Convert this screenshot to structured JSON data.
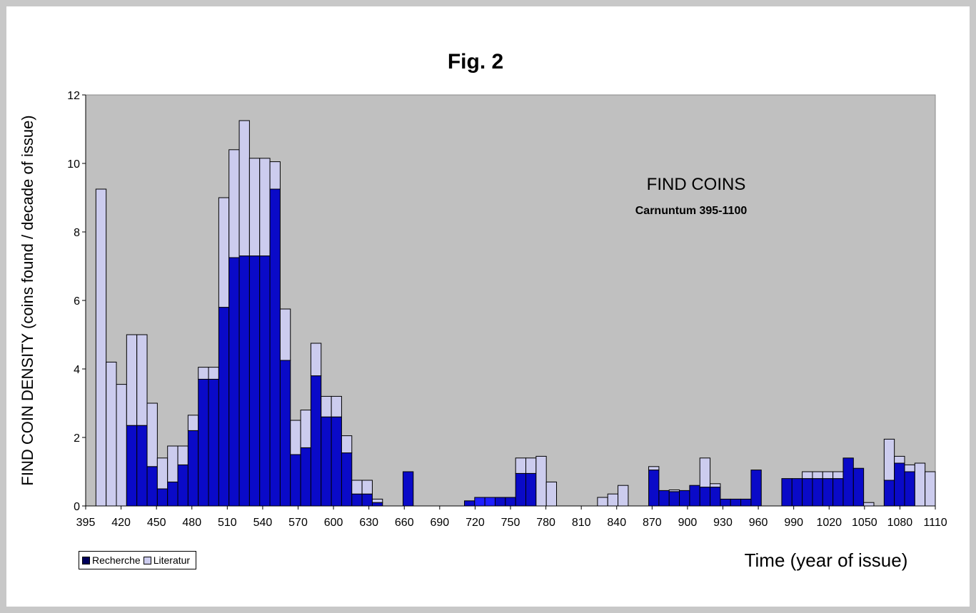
{
  "chart_data": {
    "type": "bar",
    "stacked": true,
    "title": "Fig. 2",
    "annotation_title": "FIND COINS",
    "annotation_subtitle": "Carnuntum 395-1100",
    "ylabel": "FIND COIN DENSITY  (coins found / decade of issue)",
    "xlabel": "Time (year of issue)",
    "ylim": [
      0,
      12
    ],
    "yticks": [
      0,
      2,
      4,
      6,
      8,
      10,
      12
    ],
    "xtick_labels": [
      "395",
      "420",
      "450",
      "480",
      "510",
      "540",
      "570",
      "600",
      "630",
      "660",
      "690",
      "720",
      "750",
      "780",
      "810",
      "840",
      "870",
      "900",
      "930",
      "960",
      "990",
      "1020",
      "1050",
      "1080",
      "1110"
    ],
    "grid": false,
    "legend_position": "bottom-left",
    "plot_background": "#c0c0c0",
    "colors": {
      "recherche": "#0a0ac8",
      "recherche_highlight": "#1e1eff",
      "literatur": "#ccccee",
      "legend_recherche": "#00005a"
    },
    "x_start": 395,
    "bin_width": 10,
    "series": [
      {
        "name": "Recherche",
        "values": [
          0,
          0,
          0,
          0,
          2.35,
          2.35,
          1.15,
          0.5,
          0.7,
          1.2,
          2.2,
          3.7,
          3.7,
          5.8,
          7.25,
          7.3,
          7.3,
          7.3,
          9.25,
          4.25,
          1.5,
          1.7,
          3.8,
          2.6,
          2.6,
          1.55,
          0.35,
          0.35,
          0.1,
          0,
          0,
          1.0,
          0,
          0,
          0,
          0,
          0,
          0.15,
          0.25,
          0.25,
          0.25,
          0.25,
          0.95,
          0.95,
          0,
          0,
          0,
          0,
          0,
          0,
          0,
          0,
          0,
          0,
          0,
          1.05,
          0.45,
          0.42,
          0.45,
          0.6,
          0.55,
          0.55,
          0.2,
          0.2,
          0.2,
          1.05,
          0,
          0,
          0.8,
          0.8,
          0.8,
          0.8,
          0.8,
          0.8,
          1.4,
          1.1,
          0,
          0,
          0.75,
          1.25,
          1.0,
          0,
          0
        ]
      },
      {
        "name": "Literatur",
        "values": [
          0,
          9.25,
          4.2,
          3.55,
          2.65,
          2.65,
          1.85,
          0.9,
          1.05,
          0.55,
          0.45,
          0.35,
          0.35,
          3.2,
          3.15,
          3.95,
          2.85,
          2.85,
          0.8,
          1.5,
          1.0,
          1.1,
          0.95,
          0.6,
          0.6,
          0.5,
          0.4,
          0.4,
          0.1,
          0,
          0,
          0,
          0,
          0,
          0,
          0,
          0,
          0,
          0,
          0,
          0,
          0,
          0.45,
          0.45,
          1.45,
          0.7,
          0,
          0,
          0,
          0,
          0.25,
          0.35,
          0.6,
          0,
          0,
          0.1,
          0,
          0.05,
          0,
          0,
          0.85,
          0.1,
          0,
          0,
          0,
          0,
          0,
          0,
          0,
          0,
          0.2,
          0.2,
          0.2,
          0.2,
          0,
          0,
          0.1,
          0,
          1.2,
          0.2,
          0.2,
          1.25,
          1.0
        ]
      }
    ]
  }
}
